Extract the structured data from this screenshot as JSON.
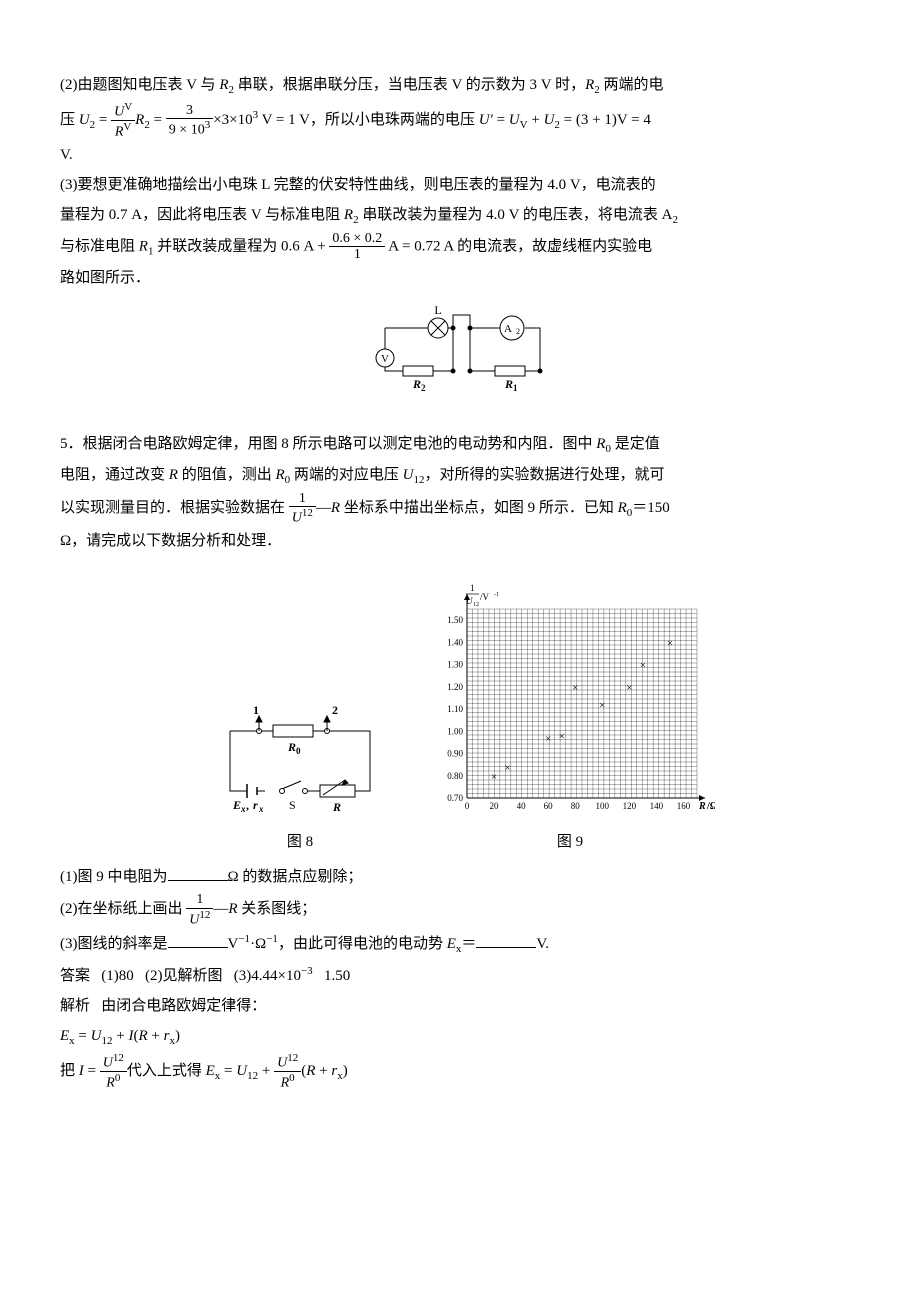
{
  "p2": {
    "lead": "(2)由题图知电压表 V 与 ",
    "r2": "R",
    "r2sub": "2",
    "t1": " 串联，根据串联分压，当电压表 V 的示数为 3 V 时，",
    "t2": " 两端的电",
    "t3": "压 ",
    "u2": "U",
    "u2sub": "2",
    "eq": " = ",
    "frac1_num": "U",
    "frac1_num_sup": "V",
    "frac1_den": "R",
    "frac1_den_sup": "V",
    "t4": " = ",
    "frac2_num": "3",
    "frac2_den": "9 × 10",
    "frac2_den_sup": "3",
    "t5": "×3×10",
    "sup3": "3",
    "t5b": " V = 1 V，所以小电珠两端的电压 ",
    "uprime": "U′  ",
    "t6": "= ",
    "uv": "U",
    "uvsub": "V",
    "plus": " + ",
    "u2b": "U",
    "u2bsub": "2",
    "t7": " = (3 + 1)V = 4",
    "t8": "V."
  },
  "p3": {
    "lead": "(3)要想更准确地描绘出小电珠 L 完整的伏安特性曲线，则电压表的量程为 4.0 V，电流表的",
    "l2a": "量程为 0.7 A，因此将电压表 V 与标准电阻 ",
    "r2": "R",
    "r2sub": "2",
    "l2b": " 串联改装为量程为 4.0 V 的电压表，将电流表 A",
    "a2sub": "2",
    "l3a": "与标准电阻 ",
    "r1": "R",
    "r1sub": "1",
    "l3b": " 并联改装成量程为 0.6 A + ",
    "frac_num": "0.6 × 0.2",
    "frac_den": "1",
    "l3c": "  A = 0.72 A 的电流表，故虚线框内实验电",
    "l4": "路如图所示．"
  },
  "circ": {
    "L": "L",
    "V": "V",
    "A2": "A",
    "A2sub": "2",
    "R2": "R",
    "R2sub": "2",
    "R1": "R",
    "R1sub": "1"
  },
  "q5": {
    "l1": "5．根据闭合电路欧姆定律，用图 8 所示电路可以测定电池的电动势和内阻．图中 ",
    "r0": "R",
    "r0sub": "0",
    "l1b": " 是定值",
    "l2a": "电阻，通过改变 ",
    "Rv": "R",
    "l2b": " 的阻值，测出 ",
    "l2c": " 两端的对应电压 ",
    "u12": "U",
    "u12sub": "12",
    "l2d": "，对所得的实验数据进行处理，就可",
    "l3a": "以实现测量目的．根据实验数据在",
    "frac_num": "1",
    "frac_den": "U",
    "frac_den_sup": "12",
    "l3b": "—",
    "Rv2": "R",
    "l3c": " 坐标系中描出坐标点，如图 9 所示．已知 ",
    "l3d": "＝150",
    "l4": "Ω，请完成以下数据分析和处理．"
  },
  "fig8": {
    "n1": "1",
    "n2": "2",
    "R0": "R",
    "R0sub": "0",
    "Ex": "E",
    "Exsub": "x",
    "comma": ", ",
    "rx": "r",
    "rxsub": "x",
    "S": "S",
    "R": "R",
    "caption": "图 8"
  },
  "chart": {
    "caption": "图 9",
    "ylabel_frac_num": "1",
    "ylabel_frac_den": "U",
    "ylabel_frac_den_sub": "12",
    "yunit": "/V",
    "yunit_sup": "-1",
    "xlabel": "R",
    "xunit": "/Ω",
    "xlim": [
      0,
      170
    ],
    "ylim": [
      0.7,
      1.55
    ],
    "xticks": [
      0,
      20,
      40,
      60,
      80,
      100,
      120,
      140,
      160
    ],
    "yticks": [
      0.7,
      0.8,
      0.9,
      1.0,
      1.1,
      1.2,
      1.3,
      1.4,
      1.5
    ],
    "points": [
      [
        20,
        0.8
      ],
      [
        30,
        0.84
      ],
      [
        60,
        0.97
      ],
      [
        70,
        0.98
      ],
      [
        80,
        1.2
      ],
      [
        100,
        1.12
      ],
      [
        120,
        1.2
      ],
      [
        130,
        1.3
      ],
      [
        150,
        1.4
      ]
    ],
    "grid_color": "#000",
    "bg": "#fff",
    "marker": "×"
  },
  "sub": {
    "q1a": "(1)图 9 中电阻为",
    "q1b": "Ω 的数据点应剔除；",
    "q2a": "(2)在坐标纸上画出",
    "frac_num": "1",
    "frac_den": "U",
    "frac_den_sup": "12",
    "q2b": "—",
    "R": "R",
    "q2c": " 关系图线；",
    "q3a": "(3)图线的斜率是",
    "q3b": "V",
    "q3sup1": "−1",
    "q3c": "·Ω",
    "q3sup2": "−1",
    "q3d": "，由此可得电池的电动势 ",
    "Ex": "E",
    "Exsub": "x",
    "q3e": "＝",
    "q3f": "V."
  },
  "ans": {
    "label": "答案",
    "a1": "(1)80",
    "a2": "(2)见解析图",
    "a3": "(3)4.44×10",
    "a3sup": "−3",
    "a3b": "1.50"
  },
  "sol": {
    "label": "解析",
    "t1": "由闭合电路欧姆定律得：",
    "eq1a": "E",
    "eq1asub": "x",
    "eq1b": " = ",
    "eq1c": "U",
    "eq1csub": "12",
    "eq1d": " + ",
    "eq1e": "I",
    "eq1f": "(",
    "eq1g": "R",
    "eq1h": " + ",
    "eq1i": "r",
    "eq1isub": "x",
    "eq1j": ")",
    "l3a": "把 ",
    "I": "I",
    "eq": " = ",
    "f1n": "U",
    "f1nsup": "12",
    "f1d": "R",
    "f1dsup": "0",
    "l3b": "代入上式得 ",
    "Ex": "E",
    "Exsub": "x",
    "eq2": " = ",
    "U12": "U",
    "U12sub": "12",
    "plus": " + ",
    "f2n": "U",
    "f2nsup": "12",
    "f2d": "R",
    "f2dsup": "0",
    "l3c": "(",
    "R": "R",
    "l3d": " + ",
    "rx": "r",
    "rxsub": "x",
    "l3e": ")"
  }
}
